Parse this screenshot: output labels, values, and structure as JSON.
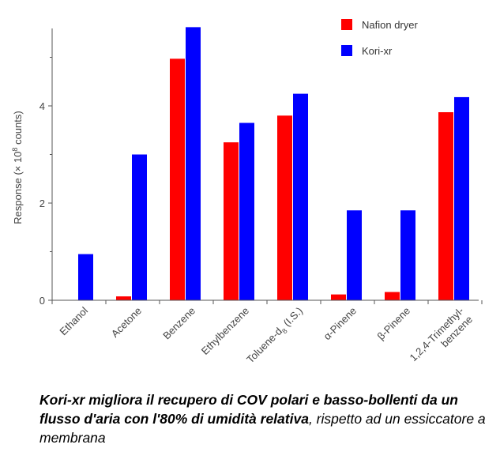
{
  "chart_data": {
    "type": "bar",
    "categories": [
      "Ethanol",
      "Acetone",
      "Benzene",
      "Ethylbenzene",
      "Toluene-d",
      "α-Pinene",
      "β-Pinene",
      "1,2,4-Trimethyl-"
    ],
    "category_suffix": {
      "4": {
        "sub": "8",
        "rest": " (I.S.)"
      }
    },
    "category_line2": {
      "7": "benzene"
    },
    "series": [
      {
        "name": "Nafion dryer",
        "color": "#ff0000",
        "values": [
          0,
          0.08,
          4.97,
          3.25,
          3.8,
          0.12,
          0.17,
          3.87
        ]
      },
      {
        "name": "Kori-xr",
        "color": "#0000ff",
        "values": [
          0.95,
          3.0,
          5.62,
          3.65,
          4.25,
          1.85,
          1.85,
          4.18
        ]
      }
    ],
    "ylabel_prefix": "Response (× 10",
    "ylabel_exp": "8",
    "ylabel_suffix": " counts)",
    "ylim": [
      0,
      5.8
    ],
    "yticks": [
      "0",
      "2",
      "4"
    ],
    "grid": false,
    "legend": "top-right"
  },
  "caption": {
    "bold": "Kori-xr migliora il recupero di COV polari e basso-bollenti da un flusso d'aria con l'80% di umidità relativa",
    "normal": ", rispetto ad un essiccatore a membrana"
  }
}
